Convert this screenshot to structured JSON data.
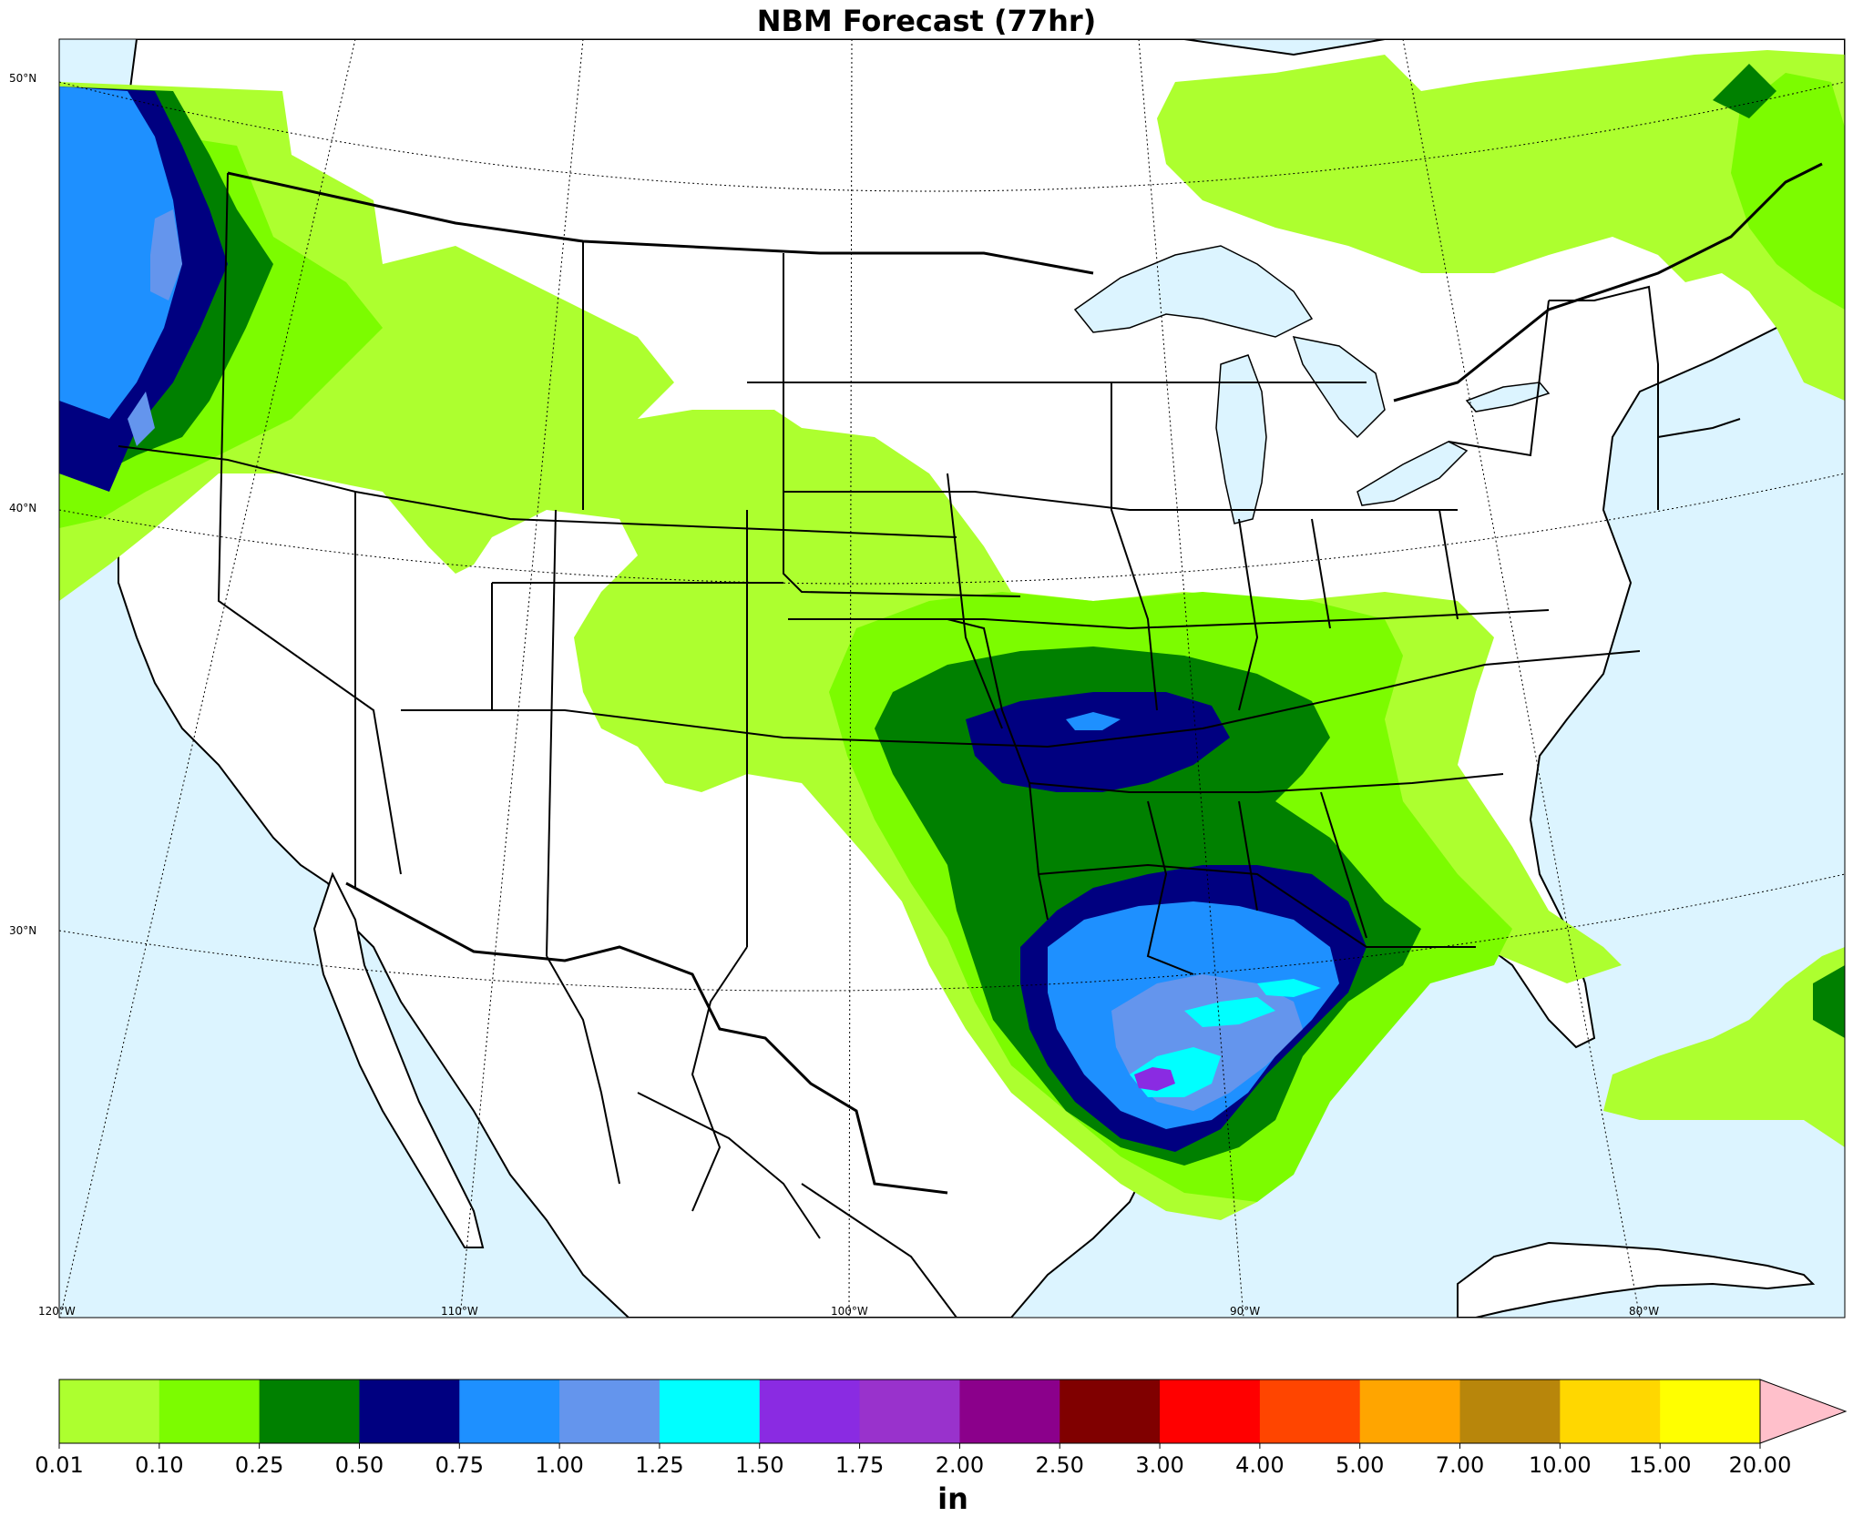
{
  "title": "NBM Forecast (77hr)",
  "lat_labels": [
    "50°N",
    "40°N",
    "30°N"
  ],
  "lon_labels": [
    "120°W",
    "110°W",
    "100°W",
    "90°W",
    "80°W"
  ],
  "colors": {
    "ocean": "#dcf4ff",
    "land": "#ffffff",
    "border": "#000000"
  },
  "colorbar": {
    "unit": "in",
    "ticks": [
      "0.01",
      "0.10",
      "0.25",
      "0.50",
      "0.75",
      "1.00",
      "1.25",
      "1.50",
      "1.75",
      "2.00",
      "2.50",
      "3.00",
      "4.00",
      "5.00",
      "7.00",
      "10.00",
      "15.00",
      "20.00"
    ],
    "colors": [
      "#adff2f",
      "#7cfc00",
      "#008000",
      "#000080",
      "#1e90ff",
      "#6495ed",
      "#00ffff",
      "#8a2be2",
      "#9932cc",
      "#8b008b",
      "#800000",
      "#ff0000",
      "#ff4500",
      "#ffa500",
      "#b8860b",
      "#ffd700",
      "#ffff00"
    ],
    "extend_color": "#ffc0cb"
  }
}
